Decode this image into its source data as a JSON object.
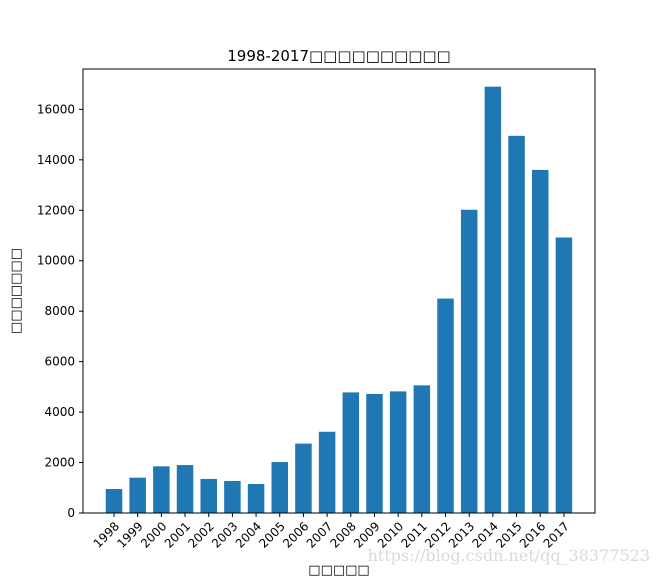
{
  "chart_data": {
    "type": "bar",
    "title": "1998-2017□□□□□□□□□□",
    "xlabel": "□□□□□",
    "ylabel": "□□□□□□□",
    "categories": [
      "1998",
      "1999",
      "2000",
      "2001",
      "2002",
      "2003",
      "2004",
      "2005",
      "2006",
      "2007",
      "2008",
      "2009",
      "2010",
      "2011",
      "2012",
      "2013",
      "2014",
      "2015",
      "2016",
      "2017"
    ],
    "values": [
      950,
      1400,
      1850,
      1900,
      1350,
      1270,
      1150,
      2020,
      2750,
      3220,
      4780,
      4720,
      4820,
      5060,
      8500,
      12020,
      16900,
      14950,
      13600,
      10920
    ],
    "yticks": [
      0,
      2000,
      4000,
      6000,
      8000,
      10000,
      12000,
      14000,
      16000
    ],
    "ylim": [
      0,
      17600
    ],
    "bar_color": "#1f77b4",
    "grid": false,
    "legend": false
  },
  "watermark": "https://blog.csdn.net/qq_38377523"
}
